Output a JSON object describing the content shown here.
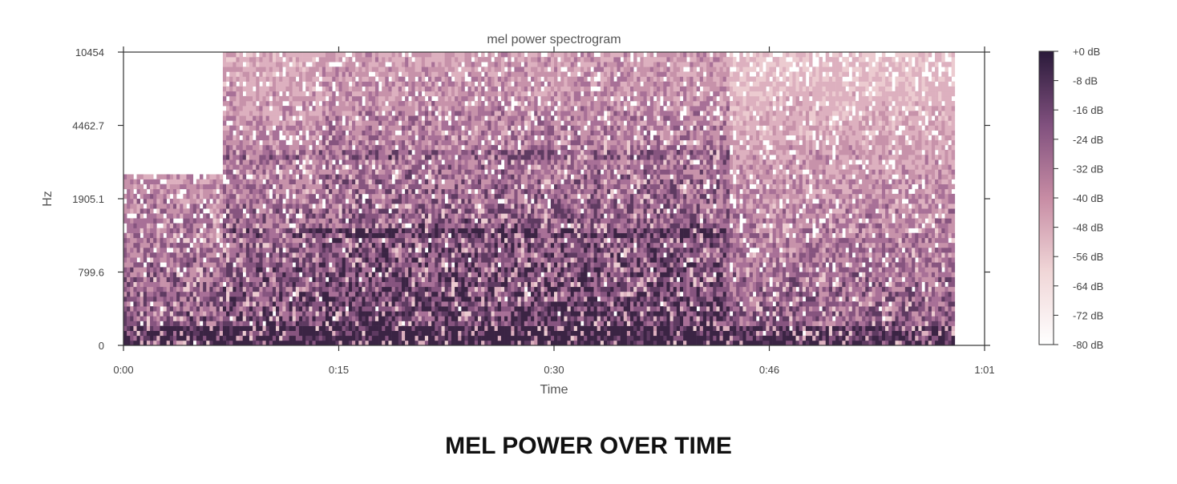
{
  "caption": "MEL POWER OVER TIME",
  "chart_data": {
    "type": "heatmap",
    "title": "mel power spectrogram",
    "xlabel": "Time",
    "ylabel": "Hz",
    "x_tick_labels": [
      "0:00",
      "0:15",
      "0:30",
      "0:46",
      "1:01"
    ],
    "y_tick_labels": [
      "0",
      "799.6",
      "1905.1",
      "4462.7",
      "10454"
    ],
    "y_scale": "mel",
    "colorbar": {
      "tick_labels": [
        "+0 dB",
        "-8 dB",
        "-16 dB",
        "-24 dB",
        "-32 dB",
        "-40 dB",
        "-48 dB",
        "-56 dB",
        "-64 dB",
        "-72 dB",
        "-80 dB"
      ],
      "range_db": [
        -80,
        0
      ],
      "color_low": "#ffffff",
      "color_high": "#2a1a3a"
    },
    "grid": false,
    "segments": [
      {
        "start": "0:00",
        "end": "0:07",
        "level": "quiet, energy below 1905 Hz"
      },
      {
        "start": "0:07",
        "end": "0:14",
        "level": "broadband up to 10454 Hz"
      },
      {
        "start": "0:14",
        "end": "0:43",
        "level": "full band, strongest"
      },
      {
        "start": "0:43",
        "end": "0:59",
        "level": "broadband, lighter above 1905 Hz"
      }
    ]
  }
}
